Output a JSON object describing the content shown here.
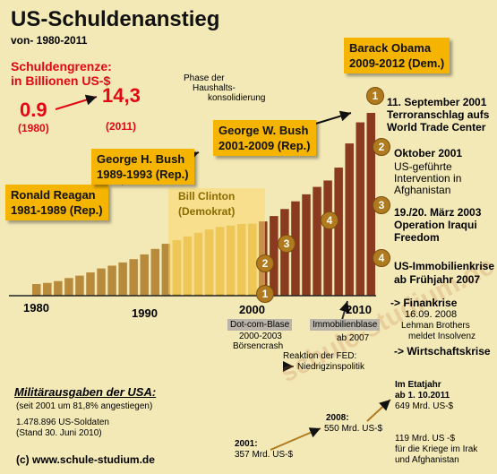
{
  "title": "US-Schuldenanstieg",
  "subtitle": "von- 1980-2011",
  "debt_limit": {
    "heading_line1": "Schuldengrenze:",
    "heading_line2": "in Billionen US-$",
    "start_value": "0.9",
    "start_year": "(1980)",
    "end_value": "14,3",
    "end_year": "(2011)"
  },
  "consolidation_note": {
    "line1": "Phase der",
    "line2": "Haushalts-",
    "line3": "konsolidierung"
  },
  "presidents": [
    {
      "name": "Ronald Reagan",
      "term": "1981-1989 (Rep.)"
    },
    {
      "name": "George H. Bush",
      "term": "1989-1993 (Rep.)"
    },
    {
      "name": "Bill Clinton",
      "term": "(Demokrat)"
    },
    {
      "name": "George W. Bush",
      "term": "2001-2009 (Rep.)"
    },
    {
      "name": "Barack Obama",
      "term": "2009-2012 (Dem.)"
    }
  ],
  "events": [
    {
      "num": "1",
      "line1": "11. September 2001",
      "line2": "Terroranschlag aufs",
      "line3": "World Trade Center"
    },
    {
      "num": "2",
      "line1": "Oktober 2001",
      "line2": "US-geführte",
      "line3": "Intervention in",
      "line4": "Afghanistan"
    },
    {
      "num": "3",
      "line1": "19./20. März 2003",
      "line2": "Operation Iraqui",
      "line3": "Freedom"
    },
    {
      "num": "4",
      "line1": "US-Immobilienkrise",
      "line2": "ab Frühjahr 2007"
    }
  ],
  "crisis": {
    "finanzkrise": "-> Finankrise",
    "date": "16.09. 2008",
    "line2": "Lehman Brothers",
    "line3": "meldet Insolvenz",
    "wirtschaftskrise": "-> Wirtschaftskrise"
  },
  "bubbles": {
    "dotcom_label": "Dot-com-Blase",
    "dotcom_years": "2000-2003",
    "dotcom_crash": "Börsencrash",
    "immo_label": "Immobilienblase",
    "immo_since": "ab 2007",
    "fed_line1": "Reaktion der FED:",
    "fed_line2": "Niedrigzinspolitik"
  },
  "military": {
    "heading": "Militärausgaben der USA:",
    "increase": "(seit 2001 um 81,8% angestiegen)",
    "soldiers": "1.478.896 US-Soldaten",
    "stand": "(Stand 30. Juni 2010)",
    "y2001_label": "2001:",
    "y2001_value": "357 Mrd. US-$",
    "y2008_label": "2008:",
    "y2008_value": "550 Mrd. US-$",
    "y2011_line1": "Im Etatjahr",
    "y2011_line2": "ab 1. 10.2011",
    "y2011_value": "649 Mrd. US-$",
    "wars_line1": "119 Mrd. US -$",
    "wars_line2": "für die Kriege im Irak",
    "wars_line3": "und Afghanistan"
  },
  "copyright": "(c) www.schule-studium.de",
  "watermark": "schule-studium.de",
  "chart_data": {
    "type": "bar",
    "x": [
      1980,
      1981,
      1982,
      1983,
      1984,
      1985,
      1986,
      1987,
      1988,
      1989,
      1990,
      1991,
      1992,
      1993,
      1994,
      1995,
      1996,
      1997,
      1998,
      1999,
      2000,
      2001,
      2002,
      2003,
      2004,
      2005,
      2006,
      2007,
      2008,
      2009,
      2010,
      2011
    ],
    "values": [
      0.91,
      1.0,
      1.14,
      1.38,
      1.57,
      1.82,
      2.13,
      2.35,
      2.6,
      2.86,
      3.23,
      3.66,
      4.06,
      4.35,
      4.64,
      4.92,
      5.18,
      5.37,
      5.48,
      5.61,
      5.63,
      5.81,
      6.23,
      6.78,
      7.38,
      7.93,
      8.51,
      9.01,
      10.02,
      11.91,
      13.56,
      14.3
    ],
    "ylim": [
      0,
      15
    ],
    "x_ticks": [
      "1980",
      "1990",
      "2000",
      "2010"
    ],
    "colors": {
      "reagan_bush": "#b88a3c",
      "clinton": "#e0b33a",
      "bush_obama": "#8a3a1e"
    }
  }
}
